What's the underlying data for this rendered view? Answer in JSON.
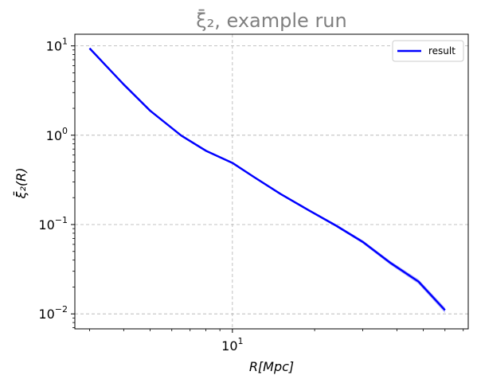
{
  "chart_data": {
    "type": "line",
    "title": "ξ̄₂, example run",
    "xlabel": "R[Mpc]",
    "ylabel": "ξ̄₂(R)",
    "xscale": "log",
    "yscale": "log",
    "xlim": [
      2.65,
      73.0
    ],
    "ylim": [
      0.0068,
      13.5
    ],
    "grid": true,
    "legend_position": "top-right",
    "x_tick_labels": [
      {
        "value": 10,
        "base": "10",
        "exp": "1"
      }
    ],
    "y_tick_labels": [
      {
        "value": 10,
        "base": "10",
        "exp": "1"
      },
      {
        "value": 1,
        "base": "10",
        "exp": "0"
      },
      {
        "value": 0.1,
        "base": "10",
        "exp": "−1"
      },
      {
        "value": 0.01,
        "base": "10",
        "exp": "−2"
      }
    ],
    "series": [
      {
        "name": "result",
        "color": "#0000ff",
        "x": [
          3.0,
          4.0,
          5.0,
          6.5,
          8.0,
          10.0,
          12.0,
          15.0,
          19.0,
          24.0,
          30.0,
          38.0,
          48.0,
          60.0
        ],
        "y": [
          9.4,
          3.7,
          1.88,
          0.99,
          0.67,
          0.49,
          0.34,
          0.22,
          0.145,
          0.097,
          0.064,
          0.037,
          0.023,
          0.011
        ],
        "band": 0.07
      }
    ]
  }
}
